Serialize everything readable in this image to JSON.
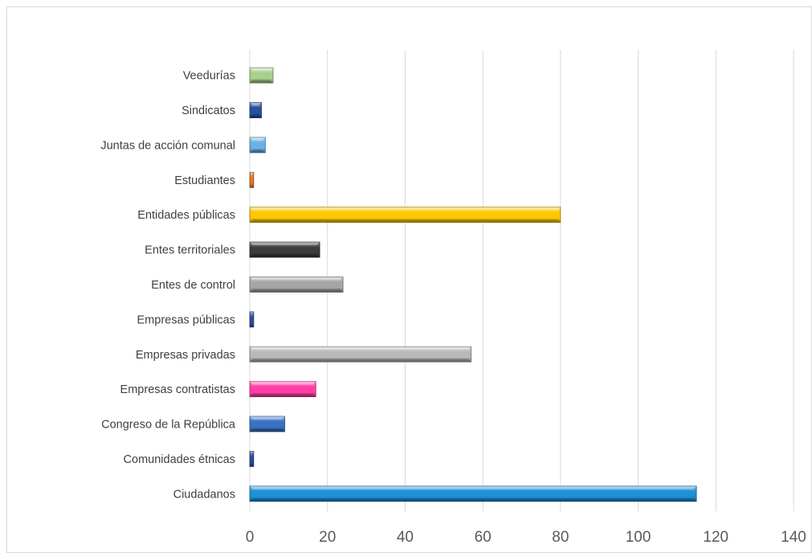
{
  "chart_data": {
    "type": "bar",
    "orientation": "horizontal",
    "title": "",
    "xlabel": "",
    "ylabel": "",
    "categories": [
      "Ciudadanos",
      "Comunidades étnicas",
      "Congreso de la República",
      "Empresas contratistas",
      "Empresas privadas",
      "Empresas públicas",
      "Entes de control",
      "Entes territoriales",
      "Entidades públicas",
      "Estudiantes",
      "Juntas de acción comunal",
      "Sindicatos",
      "Veedurías"
    ],
    "values": [
      115,
      1,
      9,
      17,
      57,
      1,
      24,
      18,
      80,
      1,
      4,
      3,
      6
    ],
    "colors": [
      "#1f8fd6",
      "#2a4f9c",
      "#3a72c4",
      "#ff3fa6",
      "#b8b8b8",
      "#2a4f9c",
      "#a6a6a6",
      "#3c3c3c",
      "#ffc800",
      "#e07a2a",
      "#6ab0e2",
      "#2a4f9c",
      "#a8d08d"
    ],
    "xlim": [
      0,
      140
    ],
    "xticks": [
      0,
      20,
      40,
      60,
      80,
      100,
      120,
      140
    ],
    "xtick_labels": [
      "0",
      "20",
      "40",
      "60",
      "80",
      "100",
      "120",
      "140"
    ],
    "grid": true,
    "legend": "none"
  }
}
